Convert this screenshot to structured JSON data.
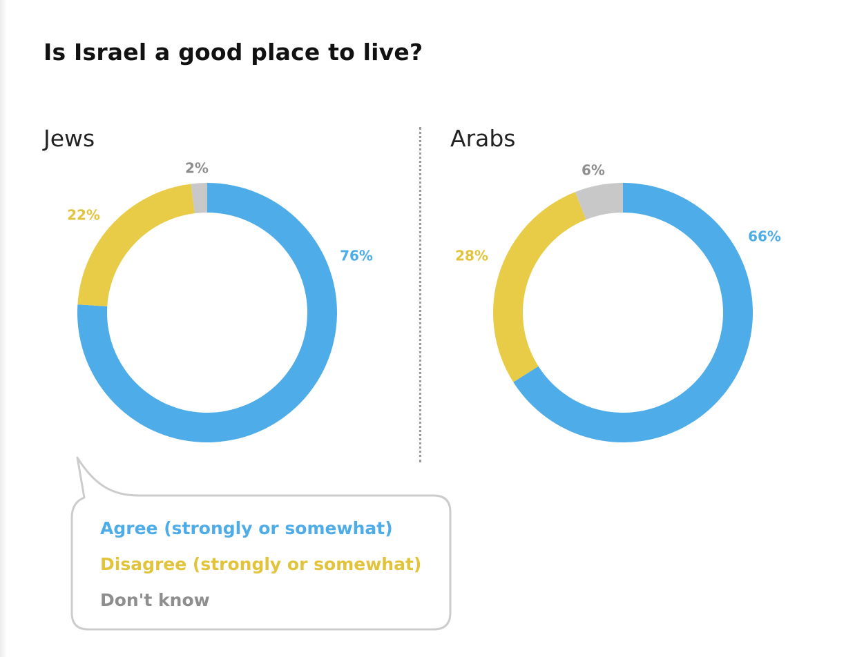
{
  "title": "Is Israel a good place to live?",
  "colors": {
    "agree": "#4EACE8",
    "disagree": "#E8CB47",
    "dont_know": "#C8C8C8",
    "agree_label": "#4EACE8",
    "disagree_label": "#E2C33C",
    "dont_know_label": "#8E8E8E"
  },
  "legend": {
    "items": [
      {
        "key": "agree",
        "label": "Agree (strongly or somewhat)"
      },
      {
        "key": "disagree",
        "label": "Disagree (strongly or somewhat)"
      },
      {
        "key": "dont_know",
        "label": "Don't know"
      }
    ]
  },
  "chart_data": [
    {
      "type": "pie",
      "title": "Jews",
      "categories": [
        "Agree (strongly or somewhat)",
        "Disagree (strongly or somewhat)",
        "Don't know"
      ],
      "values": [
        76,
        22,
        2
      ],
      "labels": [
        "76%",
        "22%",
        "2%"
      ]
    },
    {
      "type": "pie",
      "title": "Arabs",
      "categories": [
        "Agree (strongly or somewhat)",
        "Disagree (strongly or somewhat)",
        "Don't know"
      ],
      "values": [
        66,
        28,
        6
      ],
      "labels": [
        "66%",
        "28%",
        "6%"
      ]
    }
  ]
}
